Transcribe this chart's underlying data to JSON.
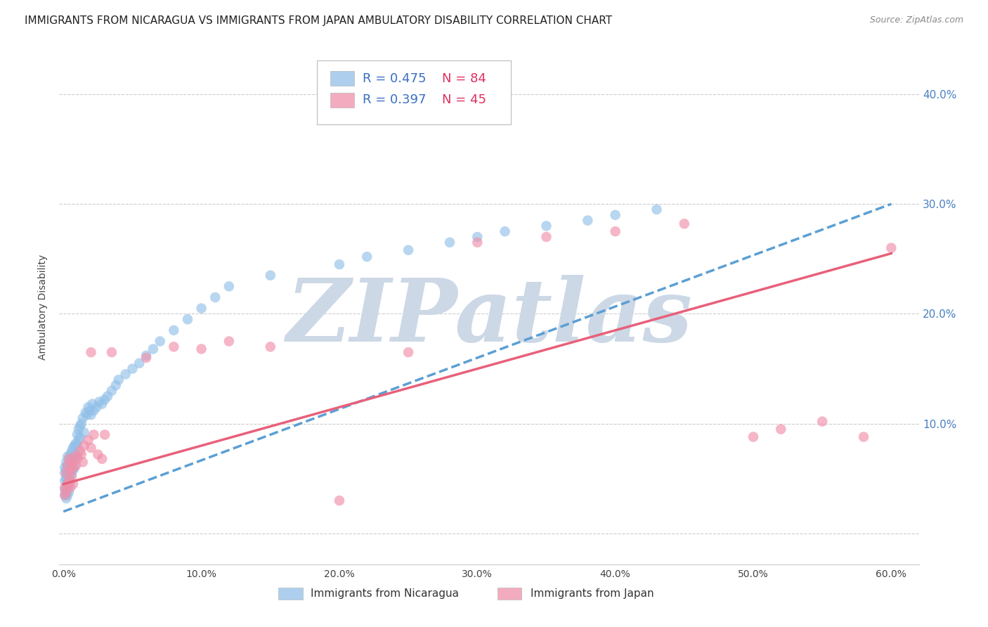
{
  "title": "IMMIGRANTS FROM NICARAGUA VS IMMIGRANTS FROM JAPAN AMBULATORY DISABILITY CORRELATION CHART",
  "source": "Source: ZipAtlas.com",
  "ylabel": "Ambulatory Disability",
  "xlim": [
    -0.003,
    0.62
  ],
  "ylim": [
    -0.028,
    0.44
  ],
  "xtick_vals": [
    0.0,
    0.1,
    0.2,
    0.3,
    0.4,
    0.5,
    0.6
  ],
  "xtick_labs": [
    "0.0%",
    "10.0%",
    "20.0%",
    "30.0%",
    "40.0%",
    "50.0%",
    "60.0%"
  ],
  "ytick_vals": [
    0.0,
    0.1,
    0.2,
    0.3,
    0.4
  ],
  "ytick_right_labs": [
    "",
    "10.0%",
    "20.0%",
    "30.0%",
    "40.0%"
  ],
  "background_color": "#ffffff",
  "watermark": "ZIPatlas",
  "watermark_color": "#ccd8e5",
  "legend_r1": "R = 0.475",
  "legend_n1": "N = 84",
  "legend_r2": "R = 0.397",
  "legend_n2": "N = 45",
  "legend_label1": "Immigrants from Nicaragua",
  "legend_label2": "Immigrants from Japan",
  "color_nicaragua": "#92c0e8",
  "color_japan": "#f090aa",
  "color_nicaragua_line": "#5b9fd4",
  "color_japan_line": "#e8607a",
  "color_r": "#3a6fc1",
  "color_n": "#e03060",
  "nicaragua_x": [
    0.001,
    0.001,
    0.001,
    0.001,
    0.001,
    0.002,
    0.002,
    0.002,
    0.002,
    0.002,
    0.002,
    0.003,
    0.003,
    0.003,
    0.003,
    0.003,
    0.003,
    0.004,
    0.004,
    0.004,
    0.004,
    0.004,
    0.005,
    0.005,
    0.005,
    0.005,
    0.006,
    0.006,
    0.006,
    0.007,
    0.007,
    0.007,
    0.008,
    0.008,
    0.008,
    0.009,
    0.009,
    0.01,
    0.01,
    0.01,
    0.011,
    0.011,
    0.012,
    0.012,
    0.013,
    0.014,
    0.015,
    0.016,
    0.017,
    0.018,
    0.019,
    0.02,
    0.021,
    0.022,
    0.024,
    0.026,
    0.028,
    0.03,
    0.032,
    0.035,
    0.038,
    0.04,
    0.045,
    0.05,
    0.055,
    0.06,
    0.065,
    0.07,
    0.08,
    0.09,
    0.1,
    0.11,
    0.12,
    0.15,
    0.2,
    0.22,
    0.25,
    0.28,
    0.3,
    0.32,
    0.35,
    0.38,
    0.4,
    0.43
  ],
  "nicaragua_y": [
    0.06,
    0.055,
    0.048,
    0.04,
    0.035,
    0.065,
    0.058,
    0.05,
    0.042,
    0.038,
    0.032,
    0.07,
    0.062,
    0.055,
    0.048,
    0.042,
    0.035,
    0.068,
    0.06,
    0.052,
    0.045,
    0.038,
    0.072,
    0.064,
    0.058,
    0.048,
    0.075,
    0.065,
    0.055,
    0.078,
    0.068,
    0.058,
    0.08,
    0.07,
    0.06,
    0.082,
    0.072,
    0.09,
    0.08,
    0.07,
    0.095,
    0.085,
    0.098,
    0.088,
    0.1,
    0.105,
    0.092,
    0.11,
    0.108,
    0.115,
    0.112,
    0.108,
    0.118,
    0.112,
    0.115,
    0.12,
    0.118,
    0.122,
    0.125,
    0.13,
    0.135,
    0.14,
    0.145,
    0.15,
    0.155,
    0.162,
    0.168,
    0.175,
    0.185,
    0.195,
    0.205,
    0.215,
    0.225,
    0.235,
    0.245,
    0.252,
    0.258,
    0.265,
    0.27,
    0.275,
    0.28,
    0.285,
    0.29,
    0.295
  ],
  "japan_x": [
    0.001,
    0.001,
    0.002,
    0.002,
    0.003,
    0.003,
    0.004,
    0.004,
    0.005,
    0.005,
    0.006,
    0.006,
    0.007,
    0.007,
    0.008,
    0.009,
    0.01,
    0.012,
    0.013,
    0.014,
    0.015,
    0.018,
    0.02,
    0.022,
    0.025,
    0.028,
    0.03,
    0.035,
    0.06,
    0.08,
    0.1,
    0.12,
    0.15,
    0.2,
    0.25,
    0.3,
    0.35,
    0.4,
    0.45,
    0.5,
    0.52,
    0.55,
    0.58,
    0.6,
    0.02
  ],
  "japan_y": [
    0.042,
    0.035,
    0.055,
    0.038,
    0.062,
    0.045,
    0.068,
    0.048,
    0.058,
    0.042,
    0.065,
    0.052,
    0.06,
    0.045,
    0.07,
    0.062,
    0.068,
    0.075,
    0.072,
    0.065,
    0.08,
    0.085,
    0.078,
    0.09,
    0.072,
    0.068,
    0.09,
    0.165,
    0.16,
    0.17,
    0.168,
    0.175,
    0.17,
    0.03,
    0.165,
    0.265,
    0.27,
    0.275,
    0.282,
    0.088,
    0.095,
    0.102,
    0.088,
    0.26,
    0.165
  ],
  "title_fontsize": 11,
  "tick_fontsize": 10,
  "legend_fontsize": 13
}
